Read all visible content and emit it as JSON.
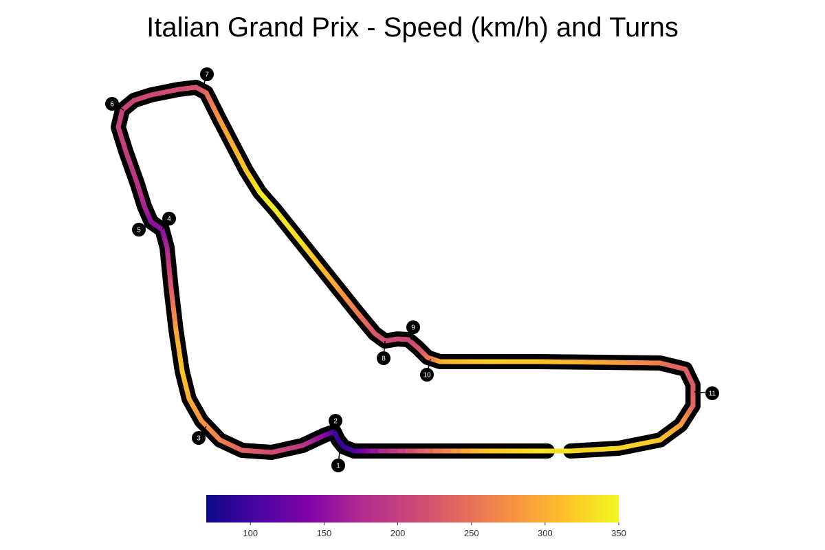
{
  "chart_data": {
    "type": "track-map",
    "title": "Italian Grand Prix - Speed (km/h) and Turns",
    "track_color": "#000000",
    "colormap": "plasma",
    "colorbar": {
      "min": 70,
      "max": 350,
      "ticks": [
        100,
        150,
        200,
        250,
        300,
        350
      ],
      "orientation": "horizontal",
      "placement": "bottom"
    },
    "turns": [
      "1",
      "2",
      "3",
      "4",
      "5",
      "6",
      "7",
      "8",
      "9",
      "10",
      "11"
    ],
    "speed_profile": [
      {
        "from": "finish line",
        "speed": 340
      },
      {
        "at_turn": "1",
        "speed": 90
      },
      {
        "at_turn": "2",
        "speed": 110
      },
      {
        "at_turn": "3",
        "speed": 270
      },
      {
        "at_turn": "4",
        "speed": 150
      },
      {
        "at_turn": "5",
        "speed": 140
      },
      {
        "at_turn": "6",
        "speed": 210
      },
      {
        "at_turn": "7",
        "speed": 220
      },
      {
        "at_turn": "8",
        "speed": 220
      },
      {
        "at_turn": "9",
        "speed": 210
      },
      {
        "at_turn": "10",
        "speed": 240
      },
      {
        "at_turn": "11",
        "speed": 230
      }
    ]
  }
}
